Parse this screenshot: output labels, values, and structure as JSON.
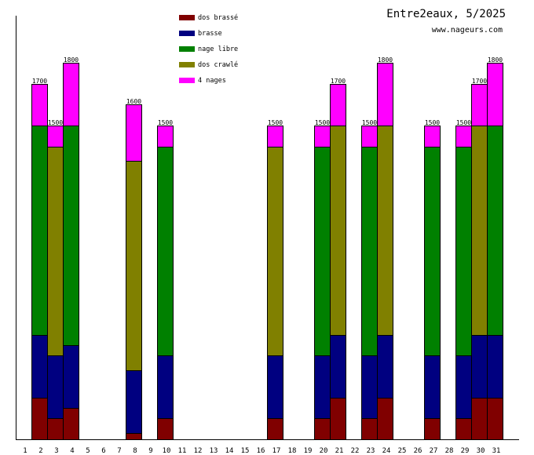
{
  "chart_data": {
    "type": "bar",
    "stacked": true,
    "title": "Entre2eaux, 5/2025",
    "subtitle": "www.nageurs.com",
    "xlabel": "",
    "ylabel": "",
    "ylim": [
      0,
      2025
    ],
    "grid": false,
    "legend_position": "top-left",
    "categories": [
      "1",
      "2",
      "3",
      "4",
      "5",
      "6",
      "7",
      "8",
      "9",
      "10",
      "11",
      "12",
      "13",
      "14",
      "15",
      "16",
      "17",
      "18",
      "19",
      "20",
      "21",
      "22",
      "23",
      "24",
      "25",
      "26",
      "27",
      "28",
      "29",
      "30",
      "31"
    ],
    "series": [
      {
        "name": "dos brassé",
        "color": "#800000",
        "values": [
          0,
          200,
          100,
          150,
          0,
          0,
          0,
          30,
          0,
          100,
          0,
          0,
          0,
          0,
          0,
          0,
          100,
          0,
          0,
          100,
          200,
          0,
          100,
          200,
          0,
          0,
          100,
          0,
          100,
          200,
          200
        ]
      },
      {
        "name": "brasse",
        "color": "#000080",
        "values": [
          0,
          300,
          300,
          300,
          0,
          0,
          0,
          300,
          0,
          300,
          0,
          0,
          0,
          0,
          0,
          0,
          300,
          0,
          0,
          300,
          300,
          0,
          300,
          300,
          0,
          0,
          300,
          0,
          300,
          300,
          300
        ]
      },
      {
        "name": "nage libre",
        "color": "#008000",
        "values": [
          0,
          1000,
          0,
          1050,
          0,
          0,
          0,
          0,
          0,
          1000,
          0,
          0,
          0,
          0,
          0,
          0,
          0,
          0,
          0,
          1000,
          0,
          0,
          1000,
          0,
          0,
          0,
          1000,
          0,
          1000,
          0,
          1000
        ]
      },
      {
        "name": "dos crawlé",
        "color": "#808000",
        "values": [
          0,
          0,
          1000,
          0,
          0,
          0,
          0,
          1000,
          0,
          0,
          0,
          0,
          0,
          0,
          0,
          0,
          1000,
          0,
          0,
          0,
          1000,
          0,
          0,
          1000,
          0,
          0,
          0,
          0,
          0,
          1000,
          0
        ]
      },
      {
        "name": "4 nages",
        "color": "#FF00FF",
        "values": [
          0,
          200,
          100,
          300,
          0,
          0,
          0,
          270,
          0,
          100,
          0,
          0,
          0,
          0,
          0,
          0,
          100,
          0,
          0,
          100,
          200,
          0,
          100,
          300,
          0,
          0,
          100,
          0,
          100,
          200,
          300
        ]
      }
    ],
    "totals": [
      0,
      1700,
      1500,
      1800,
      0,
      0,
      0,
      1600,
      0,
      1500,
      0,
      0,
      0,
      0,
      0,
      0,
      1500,
      0,
      0,
      1500,
      1700,
      0,
      1500,
      1800,
      0,
      0,
      1500,
      0,
      1500,
      1700,
      1800
    ]
  }
}
